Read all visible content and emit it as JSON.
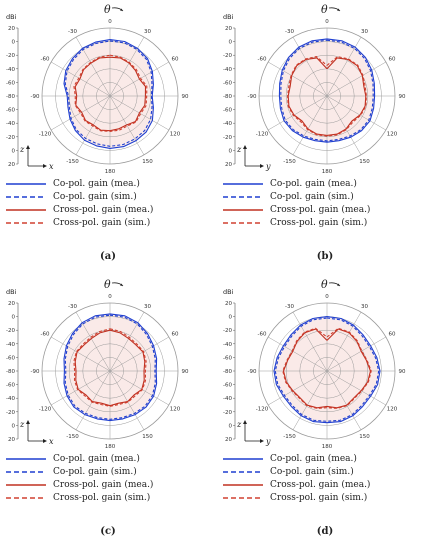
{
  "chart_data": [
    {
      "type": "polar-line",
      "label": "(a)",
      "unit": "dBi",
      "angle_symbol": "θ",
      "axis_pair": [
        "z",
        "x"
      ],
      "r_ticks": [
        20,
        0,
        -20,
        -40,
        -60,
        -80,
        -60,
        -40,
        -20,
        0,
        20
      ],
      "theta_ticks": [
        0,
        30,
        60,
        90,
        120,
        150,
        180,
        -150,
        -120,
        -90,
        -60,
        -30
      ],
      "rlim": [
        -80,
        20
      ],
      "angles_deg": [
        0,
        15,
        30,
        45,
        60,
        75,
        90,
        105,
        120,
        135,
        150,
        165,
        180,
        -165,
        -150,
        -135,
        -120,
        -105,
        -90,
        -75,
        -60,
        -45,
        -30,
        -15
      ],
      "series": [
        {
          "name": "Co-pol. gain (mea.)",
          "color": "#1f3fd0",
          "dash": "solid",
          "values": [
            3,
            3,
            1,
            -2,
            -8,
            -14,
            -18,
            -14,
            -8,
            -5,
            -4,
            -3,
            -3,
            -4,
            -5,
            -8,
            -12,
            -16,
            -17,
            -10,
            -5,
            -2,
            1,
            2
          ]
        },
        {
          "name": "Co-pol. gain (sim.)",
          "color": "#1f3fd0",
          "dash": "dashed",
          "values": [
            1,
            1,
            -1,
            -4,
            -10,
            -16,
            -19,
            -16,
            -11,
            -8,
            -7,
            -6,
            -6,
            -7,
            -8,
            -10,
            -14,
            -18,
            -19,
            -12,
            -7,
            -4,
            -1,
            0
          ]
        },
        {
          "name": "Cross-pol. gain (mea.)",
          "color": "#c03020",
          "dash": "solid",
          "values": [
            -23,
            -22,
            -24,
            -27,
            -30,
            -26,
            -28,
            -27,
            -30,
            -27,
            -31,
            -30,
            -29,
            -28,
            -31,
            -29,
            -32,
            -28,
            -31,
            -27,
            -29,
            -25,
            -24,
            -22
          ]
        },
        {
          "name": "Cross-pol. gain (sim.)",
          "color": "#d04030",
          "dash": "dashed",
          "values": [
            -20,
            -21,
            -23,
            -25,
            -28,
            -24,
            -26,
            -25,
            -28,
            -26,
            -29,
            -28,
            -28,
            -27,
            -29,
            -28,
            -30,
            -27,
            -29,
            -25,
            -27,
            -24,
            -23,
            -21
          ]
        }
      ]
    },
    {
      "type": "polar-line",
      "label": "(b)",
      "unit": "dBi",
      "angle_symbol": "θ",
      "axis_pair": [
        "z",
        "y"
      ],
      "r_ticks": [
        20,
        0,
        -20,
        -40,
        -60,
        -80,
        -60,
        -40,
        -20,
        0,
        20
      ],
      "theta_ticks": [
        0,
        30,
        60,
        90,
        120,
        150,
        180,
        -150,
        -120,
        -90,
        -60,
        -30
      ],
      "rlim": [
        -80,
        20
      ],
      "angles_deg": [
        0,
        15,
        30,
        45,
        60,
        75,
        90,
        105,
        120,
        135,
        150,
        165,
        180,
        -165,
        -150,
        -135,
        -120,
        -105,
        -90,
        -75,
        -60,
        -45,
        -30,
        -15
      ],
      "series": [
        {
          "name": "Co-pol. gain (mea.)",
          "color": "#1f3fd0",
          "dash": "solid",
          "values": [
            4,
            4,
            3,
            0,
            -4,
            -8,
            -10,
            -9,
            -7,
            -8,
            -10,
            -12,
            -12,
            -12,
            -10,
            -8,
            -7,
            -9,
            -10,
            -8,
            -4,
            0,
            3,
            4
          ]
        },
        {
          "name": "Co-pol. gain (sim.)",
          "color": "#1f3fd0",
          "dash": "dashed",
          "values": [
            2,
            2,
            1,
            -2,
            -6,
            -10,
            -12,
            -11,
            -9,
            -10,
            -12,
            -14,
            -14,
            -14,
            -12,
            -10,
            -9,
            -11,
            -12,
            -10,
            -6,
            -2,
            1,
            2
          ]
        },
        {
          "name": "Cross-pol. gain (mea.)",
          "color": "#c03020",
          "dash": "solid",
          "values": [
            -40,
            -22,
            -18,
            -17,
            -20,
            -24,
            -23,
            -22,
            -24,
            -28,
            -24,
            -22,
            -22,
            -22,
            -24,
            -28,
            -24,
            -22,
            -23,
            -24,
            -20,
            -17,
            -18,
            -22
          ]
        },
        {
          "name": "Cross-pol. gain (sim.)",
          "color": "#d04030",
          "dash": "dashed",
          "values": [
            -35,
            -20,
            -17,
            -16,
            -19,
            -22,
            -22,
            -21,
            -23,
            -26,
            -23,
            -21,
            -21,
            -21,
            -23,
            -26,
            -23,
            -21,
            -22,
            -22,
            -19,
            -16,
            -17,
            -20
          ]
        }
      ]
    },
    {
      "type": "polar-line",
      "label": "(c)",
      "unit": "dBi",
      "angle_symbol": "θ",
      "axis_pair": [
        "z",
        "x"
      ],
      "r_ticks": [
        20,
        0,
        -20,
        -40,
        -60,
        -80,
        -60,
        -40,
        -20,
        0,
        20
      ],
      "theta_ticks": [
        0,
        30,
        60,
        90,
        120,
        150,
        180,
        -150,
        -120,
        -90,
        -60,
        -30
      ],
      "rlim": [
        -80,
        20
      ],
      "angles_deg": [
        0,
        15,
        30,
        45,
        60,
        75,
        90,
        105,
        120,
        135,
        150,
        165,
        180,
        -165,
        -150,
        -135,
        -120,
        -105,
        -90,
        -75,
        -60,
        -45,
        -30,
        -15
      ],
      "series": [
        {
          "name": "Co-pol. gain (mea.)",
          "color": "#1f3fd0",
          "dash": "solid",
          "values": [
            4,
            4,
            2,
            -2,
            -6,
            -9,
            -12,
            -9,
            -6,
            -5,
            -6,
            -7,
            -7,
            -7,
            -6,
            -5,
            -7,
            -10,
            -13,
            -10,
            -6,
            -2,
            2,
            4
          ]
        },
        {
          "name": "Co-pol. gain (sim.)",
          "color": "#1f3fd0",
          "dash": "dashed",
          "values": [
            2,
            2,
            0,
            -4,
            -8,
            -11,
            -14,
            -11,
            -8,
            -7,
            -8,
            -9,
            -9,
            -9,
            -8,
            -7,
            -9,
            -12,
            -15,
            -12,
            -8,
            -4,
            0,
            2
          ]
        },
        {
          "name": "Cross-pol. gain (mea.)",
          "color": "#c03020",
          "dash": "solid",
          "values": [
            -20,
            -22,
            -25,
            -26,
            -24,
            -27,
            -30,
            -28,
            -26,
            -30,
            -28,
            -31,
            -29,
            -31,
            -28,
            -30,
            -26,
            -28,
            -30,
            -27,
            -24,
            -26,
            -25,
            -22
          ]
        },
        {
          "name": "Cross-pol. gain (sim.)",
          "color": "#d04030",
          "dash": "dashed",
          "values": [
            -18,
            -20,
            -23,
            -24,
            -23,
            -25,
            -28,
            -26,
            -25,
            -28,
            -27,
            -29,
            -28,
            -29,
            -27,
            -28,
            -25,
            -26,
            -28,
            -25,
            -23,
            -24,
            -23,
            -20
          ]
        }
      ]
    },
    {
      "type": "polar-line",
      "label": "(d)",
      "unit": "dBi",
      "angle_symbol": "θ",
      "axis_pair": [
        "z",
        "y"
      ],
      "r_ticks": [
        20,
        0,
        -20,
        -40,
        -60,
        -80,
        -60,
        -40,
        -20,
        0,
        20
      ],
      "theta_ticks": [
        0,
        30,
        60,
        90,
        120,
        150,
        180,
        -150,
        -120,
        -90,
        -60,
        -30
      ],
      "rlim": [
        -80,
        20
      ],
      "angles_deg": [
        0,
        15,
        30,
        45,
        60,
        75,
        90,
        105,
        120,
        135,
        150,
        165,
        180,
        -165,
        -150,
        -135,
        -120,
        -105,
        -90,
        -75,
        -60,
        -45,
        -30,
        -15
      ],
      "series": [
        {
          "name": "Co-pol. gain (mea.)",
          "color": "#1f3fd0",
          "dash": "solid",
          "values": [
            0,
            0,
            -2,
            -5,
            -6,
            -4,
            -2,
            -3,
            -6,
            -6,
            -4,
            -3,
            -4,
            -3,
            -4,
            -6,
            -6,
            -3,
            -2,
            -4,
            -6,
            -5,
            -2,
            0
          ]
        },
        {
          "name": "Co-pol. gain (sim.)",
          "color": "#1f3fd0",
          "dash": "dashed",
          "values": [
            -2,
            -2,
            -4,
            -7,
            -8,
            -6,
            -4,
            -5,
            -8,
            -8,
            -6,
            -5,
            -6,
            -5,
            -6,
            -8,
            -8,
            -5,
            -4,
            -6,
            -8,
            -7,
            -4,
            -2
          ]
        },
        {
          "name": "Cross-pol. gain (mea.)",
          "color": "#c03020",
          "dash": "solid",
          "values": [
            -35,
            -16,
            -15,
            -18,
            -22,
            -20,
            -16,
            -18,
            -22,
            -24,
            -22,
            -24,
            -28,
            -24,
            -22,
            -24,
            -22,
            -18,
            -16,
            -20,
            -22,
            -18,
            -15,
            -16
          ]
        },
        {
          "name": "Cross-pol. gain (sim.)",
          "color": "#d04030",
          "dash": "dashed",
          "values": [
            -30,
            -15,
            -14,
            -17,
            -21,
            -19,
            -15,
            -17,
            -21,
            -23,
            -21,
            -23,
            -26,
            -23,
            -21,
            -23,
            -21,
            -17,
            -15,
            -19,
            -21,
            -17,
            -14,
            -15
          ]
        }
      ]
    }
  ]
}
